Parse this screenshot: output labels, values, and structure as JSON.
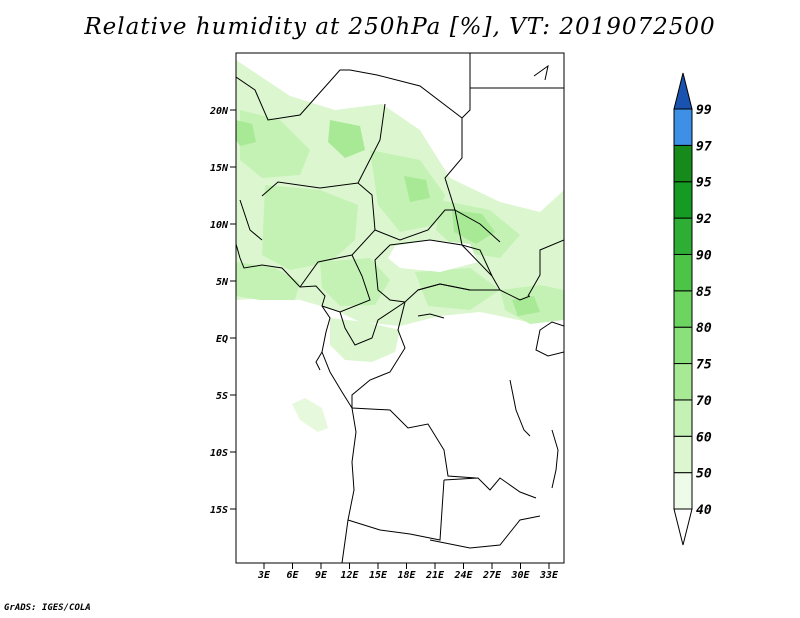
{
  "title": "Relative humidity at 250hPa [%], VT: 2019072500",
  "credit": "GrADS: IGES/COLA",
  "map": {
    "lat_labels": [
      "20N",
      "15N",
      "10N",
      "5N",
      "EQ",
      "5S",
      "10S",
      "15S"
    ],
    "lon_labels": [
      "3E",
      "6E",
      "9E",
      "12E",
      "15E",
      "18E",
      "21E",
      "24E",
      "27E",
      "30E",
      "33E"
    ]
  },
  "colorbar": {
    "levels": [
      "40",
      "50",
      "60",
      "70",
      "75",
      "80",
      "85",
      "90",
      "92",
      "95",
      "97",
      "99"
    ],
    "colors": [
      "#eefbe9",
      "#dcf7d0",
      "#c4f1b4",
      "#a8e996",
      "#8ae07a",
      "#6dd460",
      "#4cc446",
      "#2eae34",
      "#159a24",
      "#168b1b",
      "#3e8fe6",
      "#2269cc",
      "#1a52b0"
    ]
  }
}
